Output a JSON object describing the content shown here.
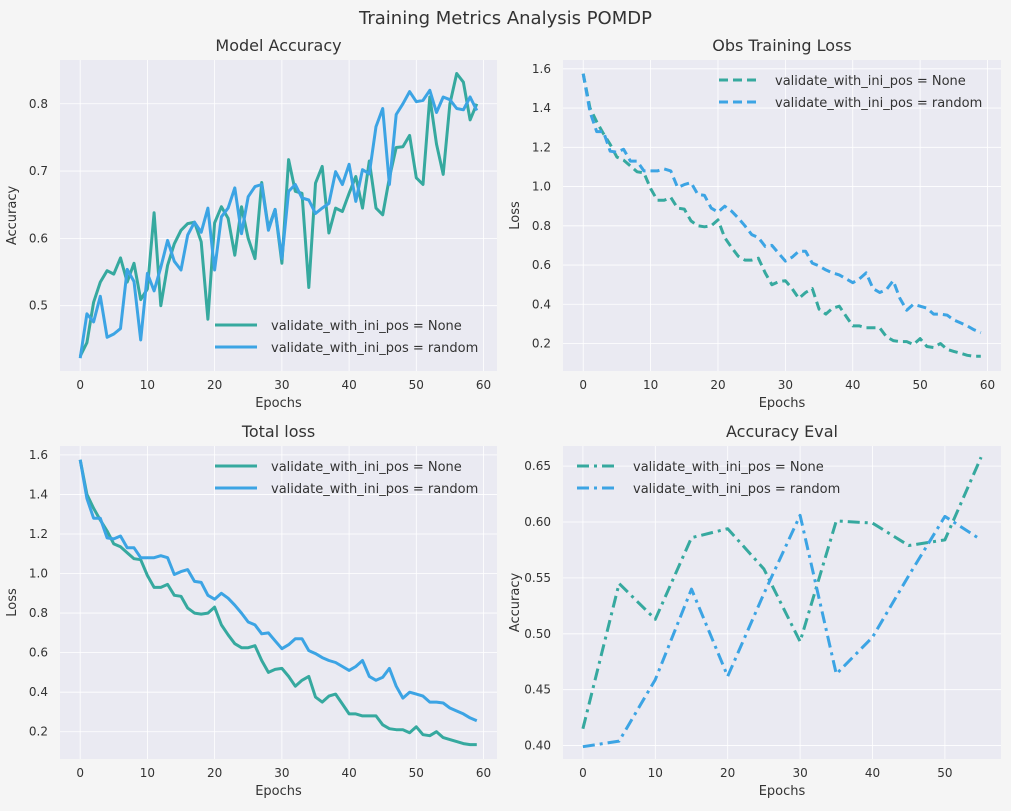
{
  "figure_title": "Training Metrics Analysis POMDP",
  "colors": {
    "none": "#36a99f",
    "random": "#3ca4e4",
    "panel_bg": "#eaeaf2",
    "grid": "#ffffff"
  },
  "chart_data": [
    {
      "type": "line",
      "title": "Model Accuracy",
      "xlabel": "Epochs",
      "ylabel": "Accuracy",
      "xlim": [
        -3.0,
        62.0
      ],
      "ylim": [
        0.403,
        0.865
      ],
      "xticks": [
        0,
        10,
        20,
        30,
        40,
        50,
        60
      ],
      "yticks": [
        0.5,
        0.6,
        0.7,
        0.8
      ],
      "ytick_labels": [
        "0.5",
        "0.6",
        "0.7",
        "0.8"
      ],
      "grid": true,
      "legend": "lower-right",
      "line_style": "solid",
      "series": [
        {
          "name": "validate_with_ini_pos = None",
          "color": "#36a99f",
          "x": [
            0,
            1,
            2,
            3,
            4,
            5,
            6,
            7,
            8,
            9,
            10,
            11,
            12,
            13,
            14,
            15,
            16,
            17,
            18,
            19,
            20,
            21,
            22,
            23,
            24,
            25,
            26,
            27,
            28,
            29,
            30,
            31,
            32,
            33,
            34,
            35,
            36,
            37,
            38,
            39,
            40,
            41,
            42,
            43,
            44,
            45,
            46,
            47,
            48,
            49,
            50,
            51,
            52,
            53,
            54,
            55,
            56,
            57,
            58,
            59
          ],
          "y": [
            0.425,
            0.445,
            0.505,
            0.535,
            0.552,
            0.547,
            0.571,
            0.535,
            0.563,
            0.509,
            0.525,
            0.638,
            0.5,
            0.56,
            0.592,
            0.612,
            0.622,
            0.624,
            0.595,
            0.48,
            0.623,
            0.647,
            0.63,
            0.575,
            0.647,
            0.6,
            0.57,
            0.683,
            0.615,
            0.643,
            0.563,
            0.717,
            0.67,
            0.667,
            0.527,
            0.682,
            0.707,
            0.608,
            0.645,
            0.64,
            0.667,
            0.692,
            0.645,
            0.715,
            0.645,
            0.635,
            0.69,
            0.735,
            0.736,
            0.753,
            0.69,
            0.68,
            0.81,
            0.74,
            0.695,
            0.8,
            0.845,
            0.832,
            0.776,
            0.8
          ]
        },
        {
          "name": "validate_with_ini_pos = random",
          "color": "#3ca4e4",
          "x": [
            0,
            1,
            2,
            3,
            4,
            5,
            6,
            7,
            8,
            9,
            10,
            11,
            12,
            13,
            14,
            15,
            16,
            17,
            18,
            19,
            20,
            21,
            22,
            23,
            24,
            25,
            26,
            27,
            28,
            29,
            30,
            31,
            32,
            33,
            34,
            35,
            36,
            37,
            38,
            39,
            40,
            41,
            42,
            43,
            44,
            45,
            46,
            47,
            48,
            49,
            50,
            51,
            52,
            53,
            54,
            55,
            56,
            57,
            58,
            59
          ],
          "y": [
            0.422,
            0.488,
            0.476,
            0.514,
            0.453,
            0.458,
            0.466,
            0.554,
            0.536,
            0.449,
            0.548,
            0.522,
            0.557,
            0.597,
            0.566,
            0.553,
            0.605,
            0.624,
            0.609,
            0.645,
            0.553,
            0.632,
            0.645,
            0.675,
            0.607,
            0.662,
            0.677,
            0.68,
            0.612,
            0.643,
            0.57,
            0.67,
            0.68,
            0.66,
            0.657,
            0.637,
            0.645,
            0.652,
            0.699,
            0.68,
            0.71,
            0.655,
            0.702,
            0.696,
            0.766,
            0.793,
            0.68,
            0.784,
            0.8,
            0.818,
            0.803,
            0.805,
            0.82,
            0.787,
            0.81,
            0.806,
            0.793,
            0.791,
            0.81,
            0.79
          ]
        }
      ]
    },
    {
      "type": "line",
      "title": "Obs Training Loss",
      "xlabel": "Epochs",
      "ylabel": "Loss",
      "xlim": [
        -3.0,
        62.0
      ],
      "ylim": [
        0.06,
        1.645
      ],
      "xticks": [
        0,
        10,
        20,
        30,
        40,
        50,
        60
      ],
      "yticks": [
        0.2,
        0.4,
        0.6,
        0.8,
        1.0,
        1.2,
        1.4,
        1.6
      ],
      "ytick_labels": [
        "0.2",
        "0.4",
        "0.6",
        "0.8",
        "1.0",
        "1.2",
        "1.4",
        "1.6"
      ],
      "grid": true,
      "legend": "upper-right",
      "line_style": "dashed",
      "series": [
        {
          "name": "validate_with_ini_pos = None",
          "color": "#36a99f",
          "x": [
            0,
            1,
            2,
            3,
            4,
            5,
            6,
            7,
            8,
            9,
            10,
            11,
            12,
            13,
            14,
            15,
            16,
            17,
            18,
            19,
            20,
            21,
            22,
            23,
            24,
            25,
            26,
            27,
            28,
            29,
            30,
            31,
            32,
            33,
            34,
            35,
            36,
            37,
            38,
            39,
            40,
            41,
            42,
            43,
            44,
            45,
            46,
            47,
            48,
            49,
            50,
            51,
            52,
            53,
            54,
            55,
            56,
            57,
            58,
            59
          ],
          "y": [
            1.575,
            1.4,
            1.33,
            1.27,
            1.215,
            1.15,
            1.135,
            1.105,
            1.075,
            1.07,
            0.99,
            0.93,
            0.93,
            0.945,
            0.89,
            0.885,
            0.825,
            0.8,
            0.795,
            0.8,
            0.83,
            0.74,
            0.69,
            0.645,
            0.625,
            0.625,
            0.635,
            0.56,
            0.5,
            0.515,
            0.52,
            0.48,
            0.43,
            0.46,
            0.48,
            0.375,
            0.35,
            0.38,
            0.39,
            0.34,
            0.29,
            0.29,
            0.28,
            0.28,
            0.28,
            0.235,
            0.215,
            0.21,
            0.21,
            0.195,
            0.225,
            0.185,
            0.18,
            0.2,
            0.17,
            0.16,
            0.15,
            0.14,
            0.135,
            0.135
          ]
        },
        {
          "name": "validate_with_ini_pos = random",
          "color": "#3ca4e4",
          "x": [
            0,
            1,
            2,
            3,
            4,
            5,
            6,
            7,
            8,
            9,
            10,
            11,
            12,
            13,
            14,
            15,
            16,
            17,
            18,
            19,
            20,
            21,
            22,
            23,
            24,
            25,
            26,
            27,
            28,
            29,
            30,
            31,
            32,
            33,
            34,
            35,
            36,
            37,
            38,
            39,
            40,
            41,
            42,
            43,
            44,
            45,
            46,
            47,
            48,
            49,
            50,
            51,
            52,
            53,
            54,
            55,
            56,
            57,
            58,
            59
          ],
          "y": [
            1.575,
            1.38,
            1.28,
            1.28,
            1.18,
            1.175,
            1.19,
            1.13,
            1.13,
            1.08,
            1.08,
            1.08,
            1.09,
            1.08,
            0.995,
            1.01,
            1.02,
            0.96,
            0.955,
            0.89,
            0.87,
            0.9,
            0.875,
            0.84,
            0.8,
            0.755,
            0.74,
            0.695,
            0.7,
            0.66,
            0.62,
            0.64,
            0.67,
            0.67,
            0.61,
            0.595,
            0.575,
            0.56,
            0.55,
            0.53,
            0.51,
            0.53,
            0.56,
            0.48,
            0.46,
            0.475,
            0.52,
            0.43,
            0.37,
            0.4,
            0.39,
            0.38,
            0.35,
            0.35,
            0.345,
            0.32,
            0.305,
            0.29,
            0.27,
            0.255
          ]
        }
      ]
    },
    {
      "type": "line",
      "title": "Total loss",
      "xlabel": "Epochs",
      "ylabel": "Loss",
      "xlim": [
        -3.0,
        62.0
      ],
      "ylim": [
        0.062,
        1.645
      ],
      "xticks": [
        0,
        10,
        20,
        30,
        40,
        50,
        60
      ],
      "yticks": [
        0.2,
        0.4,
        0.6,
        0.8,
        1.0,
        1.2,
        1.4,
        1.6
      ],
      "ytick_labels": [
        "0.2",
        "0.4",
        "0.6",
        "0.8",
        "1.0",
        "1.2",
        "1.4",
        "1.6"
      ],
      "grid": true,
      "legend": "upper-right",
      "line_style": "solid",
      "series": [
        {
          "name": "validate_with_ini_pos = None",
          "color": "#36a99f",
          "x": [
            0,
            1,
            2,
            3,
            4,
            5,
            6,
            7,
            8,
            9,
            10,
            11,
            12,
            13,
            14,
            15,
            16,
            17,
            18,
            19,
            20,
            21,
            22,
            23,
            24,
            25,
            26,
            27,
            28,
            29,
            30,
            31,
            32,
            33,
            34,
            35,
            36,
            37,
            38,
            39,
            40,
            41,
            42,
            43,
            44,
            45,
            46,
            47,
            48,
            49,
            50,
            51,
            52,
            53,
            54,
            55,
            56,
            57,
            58,
            59
          ],
          "y": [
            1.575,
            1.4,
            1.33,
            1.27,
            1.215,
            1.15,
            1.135,
            1.105,
            1.075,
            1.07,
            0.99,
            0.93,
            0.93,
            0.945,
            0.89,
            0.885,
            0.825,
            0.8,
            0.795,
            0.8,
            0.83,
            0.74,
            0.69,
            0.645,
            0.625,
            0.625,
            0.635,
            0.56,
            0.5,
            0.515,
            0.52,
            0.48,
            0.43,
            0.46,
            0.48,
            0.375,
            0.35,
            0.38,
            0.39,
            0.34,
            0.29,
            0.29,
            0.28,
            0.28,
            0.28,
            0.235,
            0.215,
            0.21,
            0.21,
            0.195,
            0.225,
            0.185,
            0.18,
            0.2,
            0.17,
            0.16,
            0.15,
            0.14,
            0.135,
            0.135
          ]
        },
        {
          "name": "validate_with_ini_pos = random",
          "color": "#3ca4e4",
          "x": [
            0,
            1,
            2,
            3,
            4,
            5,
            6,
            7,
            8,
            9,
            10,
            11,
            12,
            13,
            14,
            15,
            16,
            17,
            18,
            19,
            20,
            21,
            22,
            23,
            24,
            25,
            26,
            27,
            28,
            29,
            30,
            31,
            32,
            33,
            34,
            35,
            36,
            37,
            38,
            39,
            40,
            41,
            42,
            43,
            44,
            45,
            46,
            47,
            48,
            49,
            50,
            51,
            52,
            53,
            54,
            55,
            56,
            57,
            58,
            59
          ],
          "y": [
            1.575,
            1.38,
            1.28,
            1.28,
            1.18,
            1.175,
            1.19,
            1.13,
            1.13,
            1.08,
            1.08,
            1.08,
            1.09,
            1.08,
            0.995,
            1.01,
            1.02,
            0.96,
            0.955,
            0.89,
            0.87,
            0.9,
            0.875,
            0.84,
            0.8,
            0.755,
            0.74,
            0.695,
            0.7,
            0.66,
            0.62,
            0.64,
            0.67,
            0.67,
            0.61,
            0.595,
            0.575,
            0.56,
            0.55,
            0.53,
            0.51,
            0.53,
            0.56,
            0.48,
            0.46,
            0.475,
            0.52,
            0.43,
            0.37,
            0.4,
            0.39,
            0.38,
            0.35,
            0.35,
            0.345,
            0.32,
            0.305,
            0.29,
            0.27,
            0.255
          ]
        }
      ]
    },
    {
      "type": "line",
      "title": "Accuracy Eval",
      "xlabel": "Epochs",
      "ylabel": "Accuracy",
      "xlim": [
        -2.75,
        57.75
      ],
      "ylim": [
        0.388,
        0.668
      ],
      "xticks": [
        0,
        10,
        20,
        30,
        40,
        50
      ],
      "yticks": [
        0.4,
        0.45,
        0.5,
        0.55,
        0.6,
        0.65
      ],
      "ytick_labels": [
        "0.40",
        "0.45",
        "0.50",
        "0.55",
        "0.60",
        "0.65"
      ],
      "grid": true,
      "legend": "upper-left",
      "line_style": "dashdot",
      "series": [
        {
          "name": "validate_with_ini_pos = None",
          "color": "#36a99f",
          "x": [
            0,
            5,
            10,
            15,
            20,
            25,
            30,
            35,
            40,
            45,
            50,
            55
          ],
          "y": [
            0.415,
            0.545,
            0.513,
            0.586,
            0.594,
            0.558,
            0.493,
            0.601,
            0.599,
            0.579,
            0.584,
            0.658
          ]
        },
        {
          "name": "validate_with_ini_pos = random",
          "color": "#3ca4e4",
          "x": [
            0,
            5,
            10,
            15,
            20,
            25,
            30,
            35,
            40,
            45,
            50,
            55
          ],
          "y": [
            0.399,
            0.404,
            0.459,
            0.54,
            0.462,
            0.536,
            0.606,
            0.464,
            0.497,
            0.552,
            0.605,
            0.584
          ]
        }
      ]
    }
  ]
}
